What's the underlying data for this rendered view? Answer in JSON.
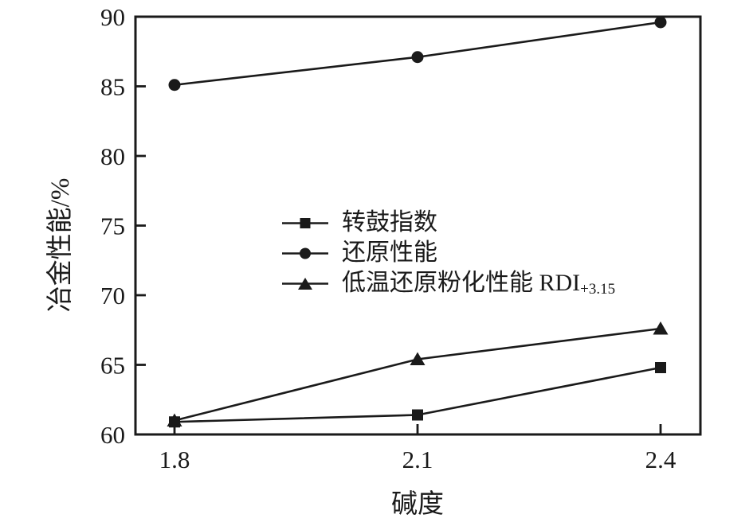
{
  "figure": {
    "background": "#ffffff",
    "ink_color": "#1a1a1a"
  },
  "chart_data": {
    "type": "line",
    "x": [
      1.8,
      2.1,
      2.4
    ],
    "series": [
      {
        "name": "转鼓指数",
        "marker": "square",
        "values": [
          60.9,
          61.4,
          64.8
        ]
      },
      {
        "name": "还原性能",
        "marker": "circle",
        "values": [
          85.1,
          87.1,
          89.6
        ]
      },
      {
        "name": "低温还原粉化性能 RDI",
        "name_sub": "+3.15",
        "marker": "triangle",
        "values": [
          61.0,
          65.4,
          67.6
        ]
      }
    ],
    "legend_order": [
      "square",
      "circle",
      "triangle"
    ],
    "xlabel": "碱度",
    "ylabel": "冶金性能/%",
    "xticks": [
      1.8,
      2.1,
      2.4
    ],
    "xtick_labels": [
      "1.8",
      "2.1",
      "2.4"
    ],
    "yticks": [
      60,
      65,
      70,
      75,
      80,
      85,
      90
    ],
    "ylim": [
      60,
      90
    ],
    "grid": false,
    "legend_position": "center",
    "line_color": "#1a1a1a"
  }
}
